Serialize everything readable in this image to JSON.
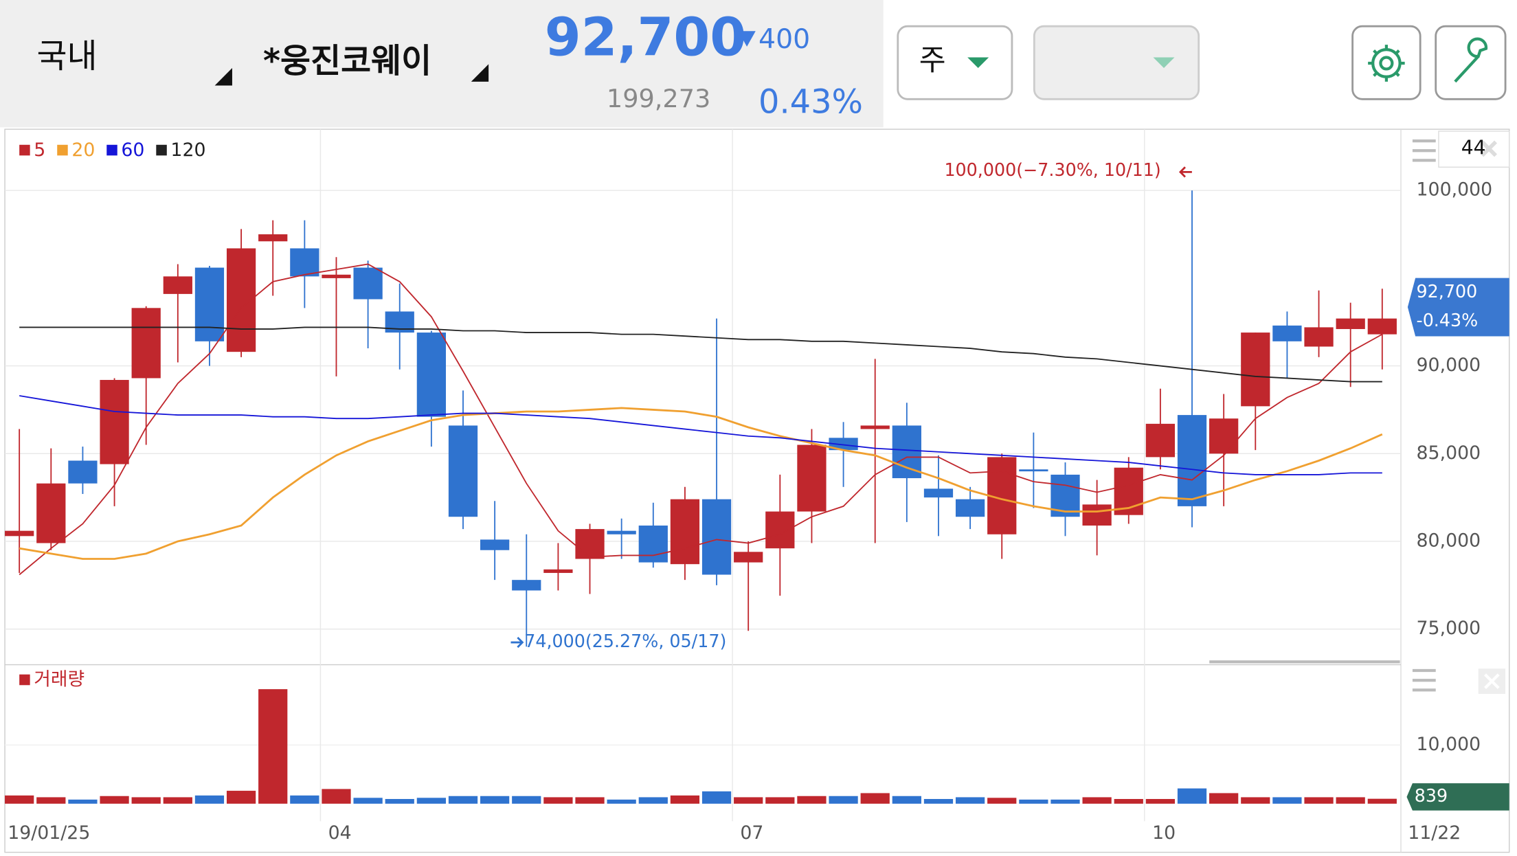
{
  "header": {
    "market": "국내",
    "stock": "*웅진코웨이",
    "price": "92,700",
    "change": "400",
    "trade_volume": "199,273",
    "change_rate": "0.43%",
    "period": "주",
    "count": "44"
  },
  "chart_data": {
    "type": "candlestick",
    "categories": [
      "19/01/25",
      null,
      null,
      null,
      null,
      null,
      null,
      null,
      null,
      null,
      "04",
      null,
      null,
      null,
      null,
      null,
      null,
      null,
      null,
      null,
      null,
      null,
      null,
      "07",
      null,
      null,
      null,
      null,
      null,
      null,
      null,
      null,
      null,
      null,
      null,
      null,
      "10",
      null,
      null,
      null,
      null,
      null,
      null,
      "11/22"
    ],
    "open": [
      80300,
      79900,
      84600,
      84400,
      89300,
      94100,
      95600,
      90800,
      97100,
      96700,
      95000,
      95600,
      93100,
      91900,
      86600,
      80100,
      77800,
      78200,
      79000,
      80600,
      80900,
      78700,
      82400,
      78800,
      79600,
      81700,
      85900,
      86400,
      86600,
      83000,
      82400,
      80400,
      84100,
      83800,
      80900,
      81500,
      84800,
      87200,
      85000,
      87700,
      92300,
      91100,
      92100,
      91800
    ],
    "high": [
      86400,
      85300,
      85400,
      89300,
      93400,
      95800,
      95700,
      97800,
      98300,
      98300,
      96200,
      96000,
      94700,
      92000,
      88600,
      82300,
      80400,
      79900,
      81000,
      81300,
      82200,
      83100,
      92700,
      80000,
      83800,
      86400,
      86800,
      90400,
      87900,
      84900,
      83100,
      85000,
      86200,
      84500,
      83500,
      84800,
      88700,
      100000,
      88400,
      91900,
      93100,
      94300,
      93600,
      94400
    ],
    "low": [
      78200,
      79500,
      82700,
      82000,
      85500,
      90200,
      90000,
      90500,
      94000,
      93300,
      89400,
      91000,
      89800,
      85400,
      80700,
      77800,
      74000,
      77200,
      77000,
      79000,
      78500,
      77800,
      77500,
      74900,
      76900,
      79900,
      83100,
      79900,
      81100,
      80300,
      80700,
      79000,
      81900,
      80300,
      79200,
      81000,
      84100,
      80800,
      82000,
      85200,
      89300,
      90500,
      88800,
      89800
    ],
    "close": [
      80600,
      83300,
      83300,
      89200,
      93300,
      95100,
      91400,
      96700,
      97500,
      95100,
      95200,
      93800,
      91900,
      87100,
      81400,
      79500,
      77200,
      78400,
      80700,
      80400,
      78800,
      82400,
      78100,
      79400,
      81700,
      85500,
      85200,
      86600,
      83600,
      82500,
      81400,
      84800,
      84000,
      81400,
      82100,
      84200,
      86700,
      82000,
      87000,
      91900,
      91400,
      92200,
      92700,
      92700
    ],
    "up_color": "#c0272d",
    "down_color": "#2f73cf",
    "series": [
      {
        "name": "5",
        "color": "#c0272d",
        "values": [
          78100,
          79600,
          81000,
          83200,
          86500,
          89000,
          90700,
          93300,
          94800,
          95200,
          95500,
          95800,
          94800,
          92800,
          89700,
          86500,
          83300,
          80600,
          79100,
          79200,
          79200,
          79600,
          80100,
          79900,
          80400,
          81400,
          82000,
          83800,
          84800,
          84800,
          83900,
          84000,
          83400,
          83200,
          82800,
          83200,
          83800,
          83500,
          84900,
          87000,
          88200,
          89000,
          90800,
          91800
        ]
      },
      {
        "name": "20",
        "color": "#f0a030",
        "values": [
          79600,
          79300,
          79000,
          79000,
          79300,
          80000,
          80400,
          80900,
          82500,
          83800,
          84900,
          85700,
          86300,
          86900,
          87200,
          87300,
          87400,
          87400,
          87500,
          87600,
          87500,
          87400,
          87100,
          86500,
          86000,
          85600,
          85200,
          84900,
          84200,
          83600,
          82900,
          82400,
          82000,
          81700,
          81700,
          81900,
          82500,
          82400,
          82900,
          83500,
          84000,
          84600,
          85300,
          86100
        ]
      },
      {
        "name": "60",
        "color": "#1515d8",
        "values": [
          88300,
          88000,
          87700,
          87400,
          87300,
          87200,
          87200,
          87200,
          87100,
          87100,
          87000,
          87000,
          87100,
          87200,
          87300,
          87300,
          87200,
          87100,
          87000,
          86800,
          86600,
          86400,
          86200,
          86000,
          85900,
          85700,
          85500,
          85300,
          85200,
          85100,
          85000,
          84900,
          84800,
          84700,
          84600,
          84500,
          84300,
          84100,
          83900,
          83800,
          83800,
          83800,
          83900,
          83900
        ]
      },
      {
        "name": "120",
        "color": "#222222",
        "values": [
          92200,
          92200,
          92200,
          92200,
          92200,
          92200,
          92200,
          92100,
          92100,
          92200,
          92200,
          92200,
          92100,
          92100,
          92000,
          92000,
          91900,
          91900,
          91900,
          91800,
          91800,
          91700,
          91600,
          91500,
          91500,
          91400,
          91400,
          91300,
          91200,
          91100,
          91000,
          90800,
          90700,
          90500,
          90400,
          90200,
          90000,
          89800,
          89600,
          89400,
          89300,
          89200,
          89100,
          89100
        ]
      }
    ],
    "ylim": [
      73300,
      103100
    ],
    "yticks": [
      {
        "value": 75000,
        "label": "75,000"
      },
      {
        "value": 80000,
        "label": "80,000"
      },
      {
        "value": 85000,
        "label": "85,000"
      },
      {
        "value": 90000,
        "label": "90,000"
      },
      {
        "value": 100000,
        "label": "100,000"
      }
    ],
    "grid": true,
    "high_label": "100,000(−7.30%, 10/11)",
    "low_label": "74,000(25.27%, 05/17)",
    "current_label": "92,700",
    "current_rate": "-0.43%",
    "volume": {
      "label": "거래량",
      "color": "#c0272d",
      "values": [
        1400,
        1100,
        700,
        1300,
        1100,
        1100,
        1400,
        2200,
        19500,
        1400,
        2500,
        1000,
        800,
        1000,
        1300,
        1300,
        1300,
        1100,
        1100,
        700,
        1100,
        1400,
        2100,
        1100,
        1100,
        1300,
        1300,
        1800,
        1300,
        800,
        1100,
        1000,
        700,
        700,
        1100,
        800,
        800,
        2600,
        1800,
        1100,
        1100,
        1100,
        1100,
        839
      ],
      "ylim": [
        0,
        23000
      ],
      "yticks": [
        {
          "value": 10000,
          "label": "10,000"
        }
      ]
    }
  }
}
